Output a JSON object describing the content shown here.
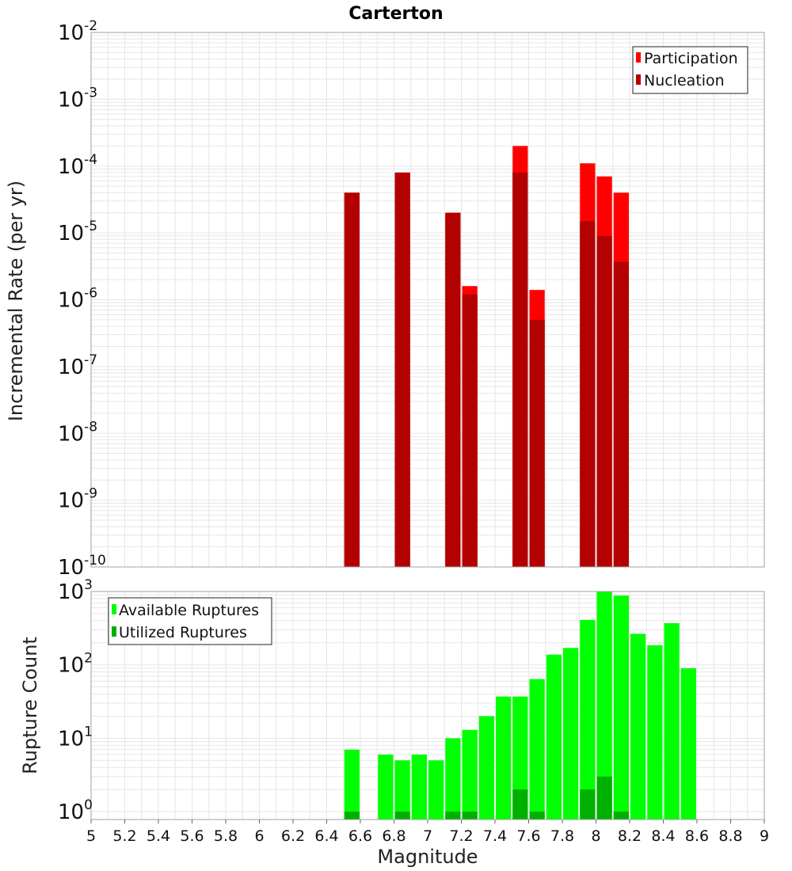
{
  "colors": {
    "participation": "#ff0000",
    "nucleation": "#b30000",
    "available": "#00ff00",
    "utilized": "#00b000",
    "grid": "#e6e6e6",
    "plot_border": "#a0a0a0"
  },
  "chart_data": [
    {
      "type": "bar",
      "title": "Carterton",
      "xlabel": "",
      "ylabel": "Incremental Rate (per yr)",
      "y_scale": "log",
      "ylim_exponents": [
        -10,
        -2
      ],
      "xlim": [
        5,
        9
      ],
      "bin_width": 0.1,
      "grid": true,
      "legend_position": "top-right",
      "y_tick_exponents": [
        "-10",
        "-9",
        "-8",
        "-7",
        "-6",
        "-5",
        "-4",
        "-3",
        "-2"
      ],
      "series": [
        {
          "name": "Participation",
          "x": [
            6.55,
            6.85,
            7.15,
            7.25,
            7.55,
            7.65,
            7.95,
            8.05,
            8.15
          ],
          "values": [
            4e-05,
            8e-05,
            2e-05,
            1.6e-06,
            0.0002,
            1.4e-06,
            0.00011,
            7e-05,
            4e-05
          ]
        },
        {
          "name": "Nucleation",
          "x": [
            6.55,
            6.85,
            7.15,
            7.25,
            7.55,
            7.65,
            7.95,
            8.05,
            8.15
          ],
          "values": [
            4e-05,
            8e-05,
            2e-05,
            1.2e-06,
            8e-05,
            5e-07,
            1.5e-05,
            9e-06,
            3.7e-06
          ]
        }
      ]
    },
    {
      "type": "bar",
      "title": "",
      "xlabel": "Magnitude",
      "ylabel": "Rupture Count",
      "y_scale": "log",
      "ylim": [
        0.78,
        1000
      ],
      "xlim": [
        5,
        9
      ],
      "bin_width": 0.1,
      "grid": true,
      "legend_position": "top-left",
      "y_tick_exponents": [
        "0",
        "1",
        "2",
        "3"
      ],
      "x_tick_labels": [
        "5",
        "5.2",
        "5.4",
        "5.6",
        "5.8",
        "6",
        "6.2",
        "6.4",
        "6.6",
        "6.8",
        "7",
        "7.2",
        "7.4",
        "7.6",
        "7.8",
        "8",
        "8.2",
        "8.4",
        "8.6",
        "8.8",
        "9"
      ],
      "series": [
        {
          "name": "Available Ruptures",
          "x": [
            6.55,
            6.75,
            6.85,
            6.95,
            7.05,
            7.15,
            7.25,
            7.35,
            7.45,
            7.55,
            7.65,
            7.75,
            7.85,
            7.95,
            8.05,
            8.15,
            8.25,
            8.35,
            8.45,
            8.55
          ],
          "values": [
            7,
            6,
            5,
            6,
            5,
            10,
            13,
            20,
            37,
            37,
            64,
            138,
            170,
            410,
            1000,
            880,
            265,
            185,
            370,
            90
          ]
        },
        {
          "name": "Utilized Ruptures",
          "x": [
            6.55,
            6.85,
            7.15,
            7.25,
            7.55,
            7.65,
            7.95,
            8.05,
            8.15
          ],
          "values": [
            1,
            1,
            1,
            1,
            2,
            1,
            2,
            3,
            1
          ]
        }
      ]
    }
  ]
}
